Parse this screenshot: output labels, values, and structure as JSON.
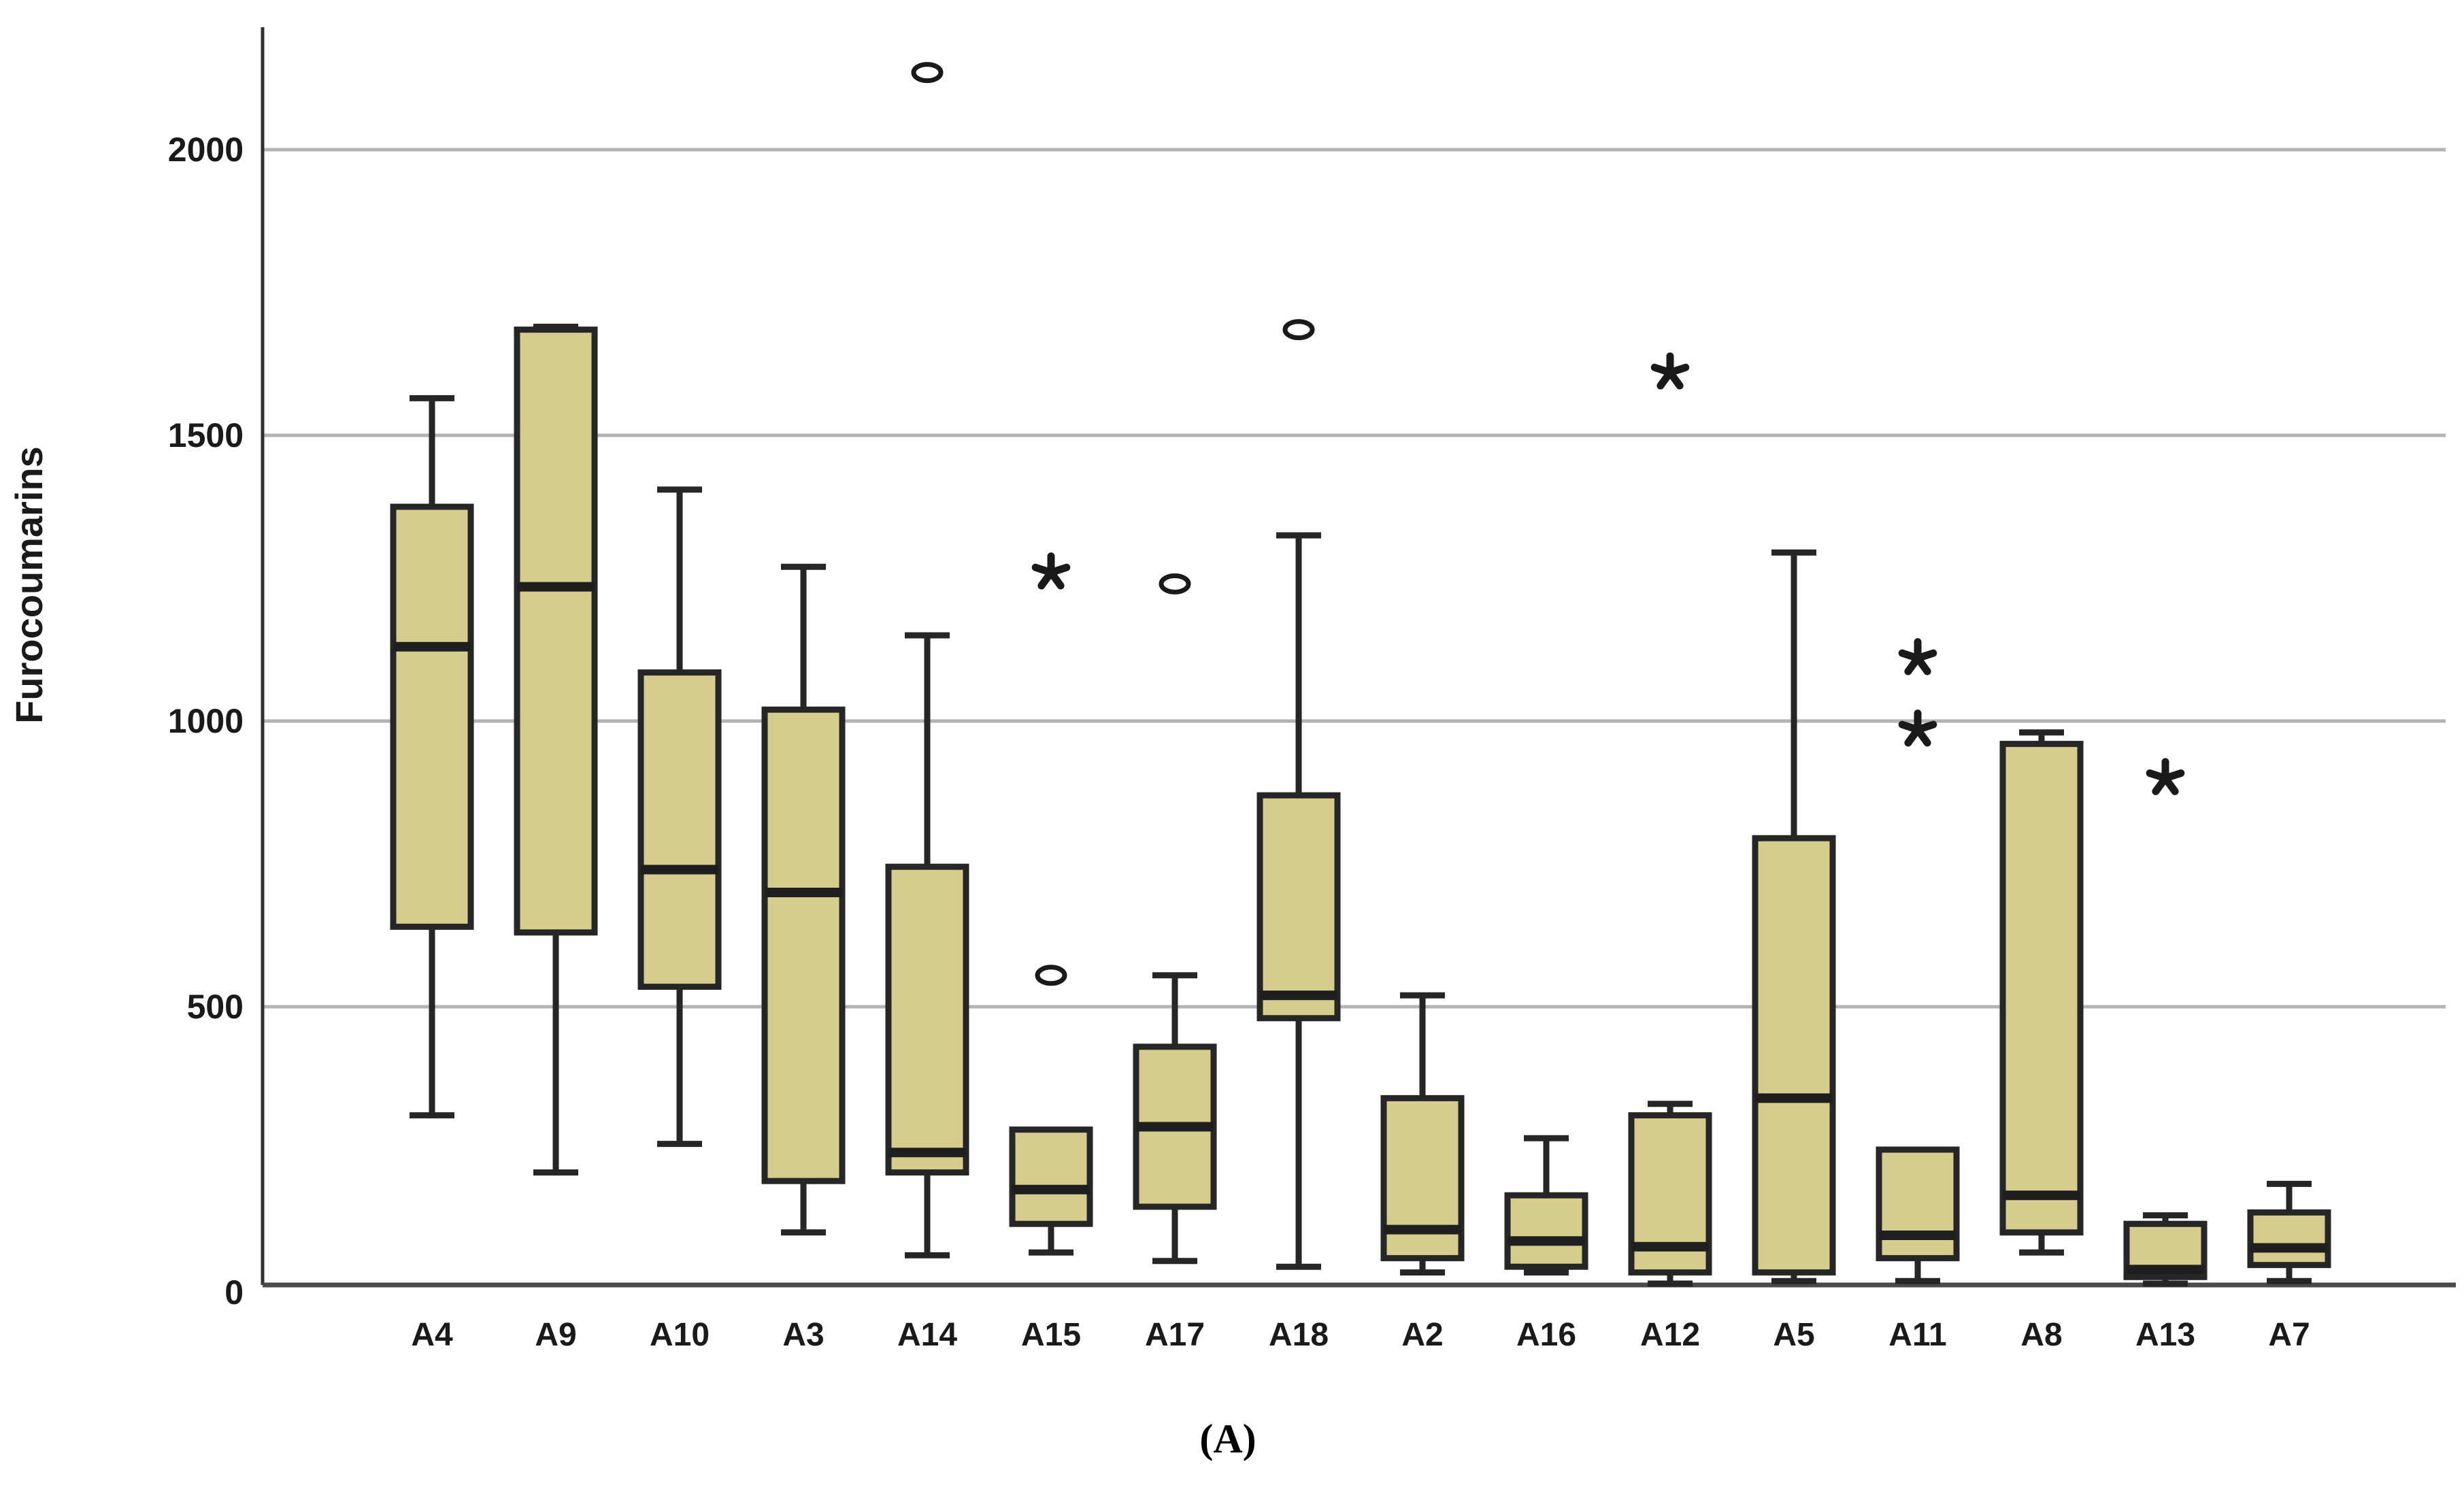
{
  "chart_data": {
    "type": "boxplot",
    "title": "",
    "ylabel": "Furocoumarins",
    "caption": "(A)",
    "xlabel": "",
    "y_ticks": [
      0,
      500,
      1000,
      1500,
      2000
    ],
    "ylim": [
      0,
      2200
    ],
    "grid": "horizontal",
    "legend": "none",
    "colors": {
      "box_fill": "#d5cc8e",
      "box_stroke": "#262626",
      "median": "#1f1f1f",
      "whisker": "#262626",
      "gridline": "#b3b3b3",
      "axis": "#4a4a4a",
      "left_axis": "#303030",
      "outlier": "#1a1a1a",
      "background": "#ffffff"
    },
    "categories": [
      "A4",
      "A9",
      "A10",
      "A3",
      "A14",
      "A15",
      "A17",
      "A18",
      "A2",
      "A16",
      "A12",
      "A5",
      "A11",
      "A8",
      "A13",
      "A7"
    ],
    "boxes": [
      {
        "category": "A4",
        "min": 310,
        "q1": 640,
        "median": 1130,
        "q3": 1375,
        "max": 1565,
        "outliers": []
      },
      {
        "category": "A9",
        "min": 210,
        "q1": 630,
        "median": 1235,
        "q3": 1685,
        "max": 1690,
        "outliers": []
      },
      {
        "category": "A10",
        "min": 260,
        "q1": 535,
        "median": 740,
        "q3": 1085,
        "max": 1405,
        "outliers": []
      },
      {
        "category": "A3",
        "min": 105,
        "q1": 195,
        "median": 700,
        "q3": 1020,
        "max": 1270,
        "outliers": []
      },
      {
        "category": "A14",
        "min": 65,
        "q1": 210,
        "median": 245,
        "q3": 745,
        "max": 1150,
        "outliers": [
          {
            "value": 2135,
            "marker": "circle"
          }
        ]
      },
      {
        "category": "A15",
        "min": 70,
        "q1": 120,
        "median": 180,
        "q3": 285,
        "max": 285,
        "outliers": [
          {
            "value": 555,
            "marker": "circle"
          },
          {
            "value": 1260,
            "marker": "asterisk"
          }
        ]
      },
      {
        "category": "A17",
        "min": 55,
        "q1": 150,
        "median": 290,
        "q3": 430,
        "max": 555,
        "outliers": [
          {
            "value": 1240,
            "marker": "circle"
          }
        ]
      },
      {
        "category": "A18",
        "min": 45,
        "q1": 480,
        "median": 520,
        "q3": 870,
        "max": 1325,
        "outliers": [
          {
            "value": 1685,
            "marker": "circle"
          }
        ]
      },
      {
        "category": "A2",
        "min": 35,
        "q1": 60,
        "median": 110,
        "q3": 340,
        "max": 520,
        "outliers": []
      },
      {
        "category": "A16",
        "min": 35,
        "q1": 45,
        "median": 90,
        "q3": 170,
        "max": 270,
        "outliers": []
      },
      {
        "category": "A12",
        "min": 15,
        "q1": 35,
        "median": 80,
        "q3": 310,
        "max": 330,
        "outliers": [
          {
            "value": 1610,
            "marker": "asterisk"
          }
        ]
      },
      {
        "category": "A5",
        "min": 20,
        "q1": 35,
        "median": 340,
        "q3": 795,
        "max": 1295,
        "outliers": []
      },
      {
        "category": "A11",
        "min": 20,
        "q1": 60,
        "median": 100,
        "q3": 250,
        "max": 250,
        "outliers": [
          {
            "value": 985,
            "marker": "asterisk"
          },
          {
            "value": 1110,
            "marker": "asterisk"
          }
        ]
      },
      {
        "category": "A8",
        "min": 70,
        "q1": 105,
        "median": 170,
        "q3": 960,
        "max": 980,
        "outliers": []
      },
      {
        "category": "A13",
        "min": 12,
        "q1": 27,
        "median": 40,
        "q3": 120,
        "max": 135,
        "outliers": [
          {
            "value": 900,
            "marker": "asterisk"
          }
        ]
      },
      {
        "category": "A7",
        "min": 20,
        "q1": 48,
        "median": 78,
        "q3": 140,
        "max": 190,
        "outliers": []
      }
    ]
  }
}
